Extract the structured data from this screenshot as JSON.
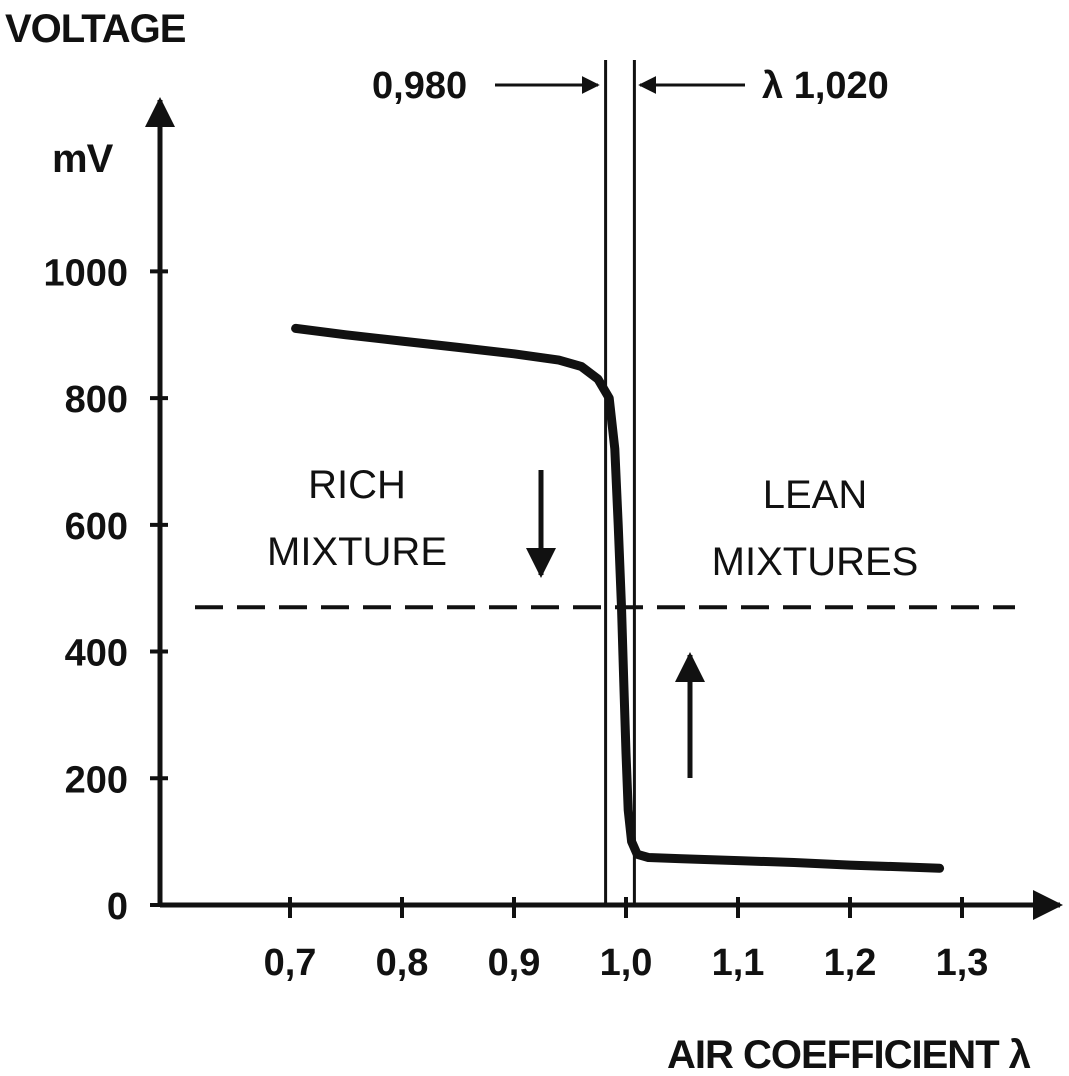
{
  "chart_data": {
    "type": "line",
    "title": "",
    "ylabel": "VOLTAGE",
    "yunit": "mV",
    "xlabel": "AIR COEFFICIENT λ",
    "xlim": [
      0.6,
      1.35
    ],
    "ylim": [
      0,
      1150
    ],
    "y_ticks": [
      0,
      200,
      400,
      600,
      800,
      1000
    ],
    "y_tick_labels": [
      "0",
      "200",
      "400",
      "600",
      "800",
      "1000"
    ],
    "x_ticks": [
      0.7,
      0.8,
      0.9,
      1.0,
      1.1,
      1.2,
      1.3
    ],
    "x_tick_labels": [
      "0,7",
      "0,8",
      "0,9",
      "1,0",
      "1,1",
      "1,2",
      "1,3"
    ],
    "grid": false,
    "series": [
      {
        "x": [
          0.705,
          0.75,
          0.8,
          0.85,
          0.9,
          0.94,
          0.96,
          0.975,
          0.985,
          0.99,
          0.993,
          0.996,
          0.998,
          1.0,
          1.002,
          1.005,
          1.01,
          1.02,
          1.05,
          1.1,
          1.15,
          1.2,
          1.25,
          1.28
        ],
        "y": [
          910,
          900,
          890,
          880,
          870,
          860,
          850,
          830,
          800,
          720,
          600,
          470,
          350,
          240,
          150,
          100,
          80,
          75,
          73,
          70,
          67,
          63,
          60,
          58
        ]
      }
    ],
    "reference_lines": {
      "horizontal_dashed_mV": 470,
      "vertical_lambda": [
        0.98,
        1.02
      ]
    },
    "annotations": {
      "left_window": "0,980",
      "right_window": "λ 1,020",
      "rich_line1": "RICH",
      "rich_line2": "MIXTURE",
      "lean_line1": "LEAN",
      "lean_line2": "MIXTURES"
    }
  }
}
